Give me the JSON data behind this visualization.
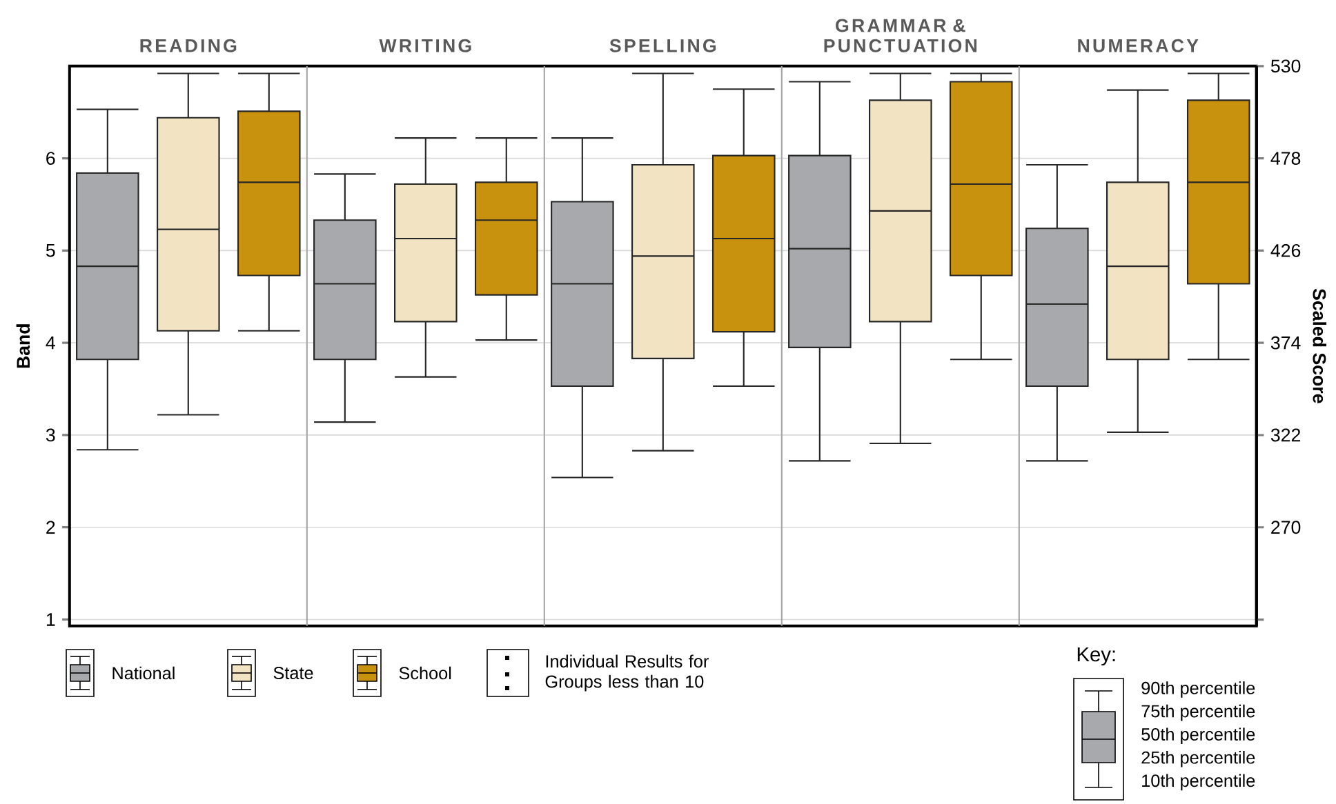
{
  "chart_data": {
    "type": "box",
    "categories": [
      "READING",
      "WRITING",
      "SPELLING",
      "GRAMMAR & PUNCTUATION",
      "NUMERACY"
    ],
    "series": [
      {
        "name": "National",
        "color": "#a7a9ac",
        "boxes": [
          {
            "low": 2.84,
            "q1": 3.82,
            "median": 4.83,
            "q3": 5.84,
            "high": 6.53
          },
          {
            "low": 3.14,
            "q1": 3.82,
            "median": 4.64,
            "q3": 5.33,
            "high": 5.83
          },
          {
            "low": 2.54,
            "q1": 3.53,
            "median": 4.64,
            "q3": 5.53,
            "high": 6.22
          },
          {
            "low": 2.72,
            "q1": 3.95,
            "median": 5.02,
            "q3": 6.03,
            "high": 6.83
          },
          {
            "low": 2.72,
            "q1": 3.53,
            "median": 4.42,
            "q3": 5.24,
            "high": 5.93
          }
        ]
      },
      {
        "name": "State",
        "color": "#f2e3c3",
        "boxes": [
          {
            "low": 3.22,
            "q1": 4.13,
            "median": 5.23,
            "q3": 6.44,
            "high": 6.92
          },
          {
            "low": 3.63,
            "q1": 4.23,
            "median": 5.13,
            "q3": 5.72,
            "high": 6.22
          },
          {
            "low": 2.83,
            "q1": 3.83,
            "median": 4.94,
            "q3": 5.93,
            "high": 6.92
          },
          {
            "low": 2.91,
            "q1": 4.23,
            "median": 5.43,
            "q3": 6.63,
            "high": 6.92
          },
          {
            "low": 3.03,
            "q1": 3.82,
            "median": 4.83,
            "q3": 5.74,
            "high": 6.74
          }
        ]
      },
      {
        "name": "School",
        "color": "#c8910e",
        "boxes": [
          {
            "low": 4.13,
            "q1": 4.73,
            "median": 5.74,
            "q3": 6.51,
            "high": 6.92
          },
          {
            "low": 4.03,
            "q1": 4.52,
            "median": 5.33,
            "q3": 5.74,
            "high": 6.22
          },
          {
            "low": 3.53,
            "q1": 4.12,
            "median": 5.13,
            "q3": 6.03,
            "high": 6.75
          },
          {
            "low": 3.82,
            "q1": 4.73,
            "median": 5.72,
            "q3": 6.83,
            "high": 6.92
          },
          {
            "low": 3.82,
            "q1": 4.64,
            "median": 5.74,
            "q3": 6.63,
            "high": 6.92
          }
        ]
      }
    ],
    "ylabel": "Band",
    "y2label": "Scaled  Score",
    "ylim": [
      0.93,
      7.0
    ],
    "yticks": [
      1,
      2,
      3,
      4,
      5,
      6
    ],
    "y2lim": [
      214.4,
      530
    ],
    "y2ticks": [
      {
        "value": 218,
        "label": null
      },
      270,
      322,
      374,
      426,
      478,
      530
    ],
    "grid": "y",
    "legend": "bottom left",
    "annotations": [
      "Individual Results for Groups less than 10",
      "Key:",
      "90th percentile",
      "75th percentile",
      "50th percentile",
      "25th percentile",
      "10th percentile"
    ]
  }
}
